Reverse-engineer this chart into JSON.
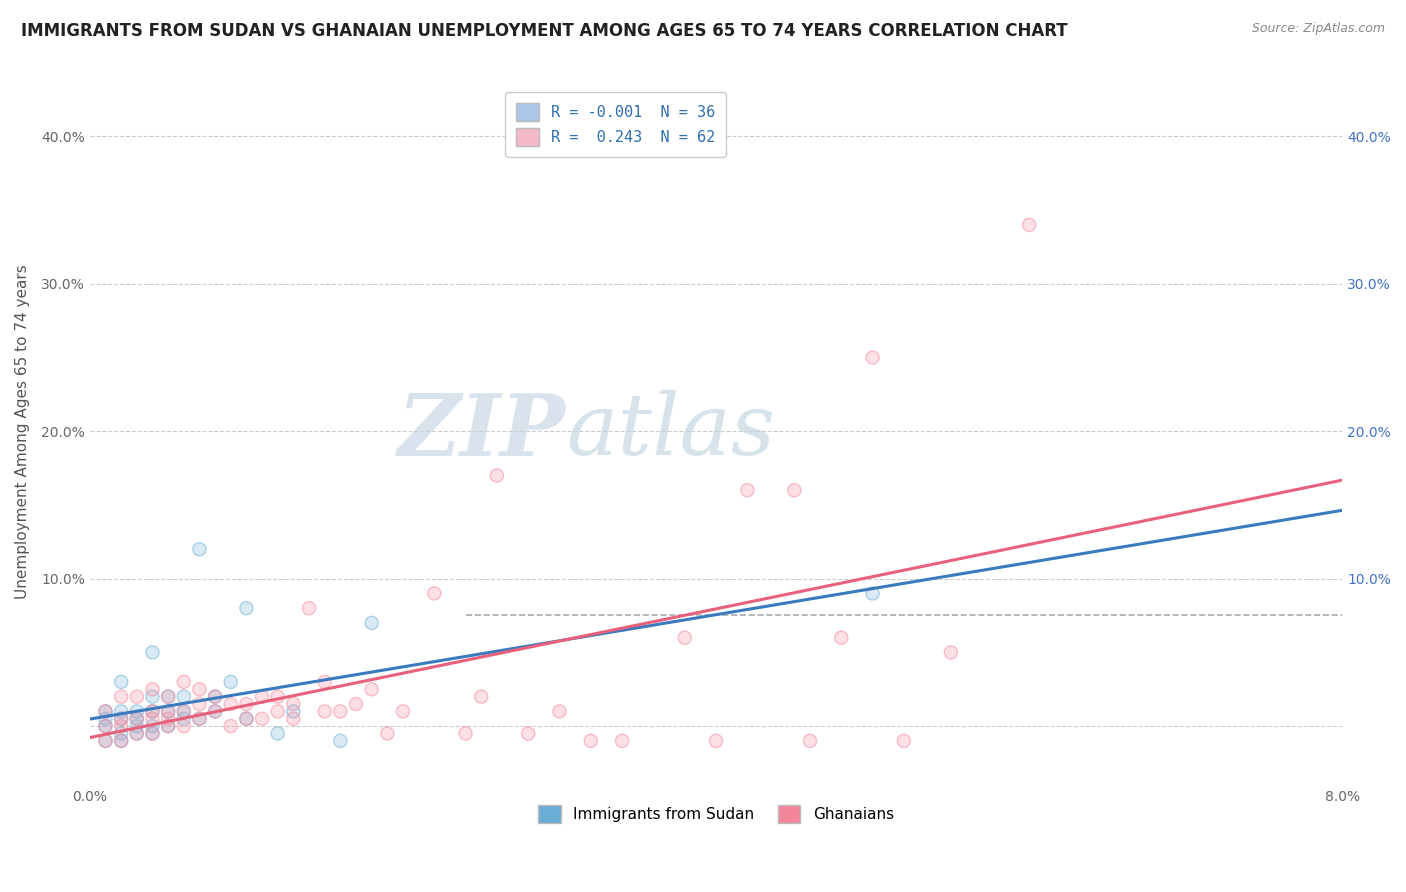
{
  "title": "IMMIGRANTS FROM SUDAN VS GHANAIAN UNEMPLOYMENT AMONG AGES 65 TO 74 YEARS CORRELATION CHART",
  "source_text": "Source: ZipAtlas.com",
  "ylabel": "Unemployment Among Ages 65 to 74 years",
  "xlim": [
    0.0,
    0.08
  ],
  "ylim": [
    -0.04,
    0.44
  ],
  "x_ticks": [
    0.0,
    0.02,
    0.04,
    0.06,
    0.08
  ],
  "x_tick_labels": [
    "0.0%",
    "",
    "",
    "",
    "8.0%"
  ],
  "y_ticks": [
    0.0,
    0.1,
    0.2,
    0.3,
    0.4
  ],
  "y_tick_labels_left": [
    "",
    "10.0%",
    "20.0%",
    "30.0%",
    "40.0%"
  ],
  "y_tick_labels_right": [
    "",
    "10.0%",
    "20.0%",
    "30.0%",
    "40.0%"
  ],
  "legend_entries": [
    {
      "label": "R = -0.001  N = 36",
      "color": "#aec6e8"
    },
    {
      "label": "R =  0.243  N = 62",
      "color": "#f4b8c8"
    }
  ],
  "sudan_color": "#6aaed6",
  "ghana_color": "#f4869b",
  "sudan_line_color": "#3a7abf",
  "ghana_line_color": "#e8607a",
  "watermark_zip": "ZIP",
  "watermark_atlas": "atlas",
  "sudan_scatter_x": [
    0.001,
    0.001,
    0.001,
    0.001,
    0.002,
    0.002,
    0.002,
    0.002,
    0.002,
    0.003,
    0.003,
    0.003,
    0.003,
    0.004,
    0.004,
    0.004,
    0.004,
    0.004,
    0.005,
    0.005,
    0.005,
    0.006,
    0.006,
    0.006,
    0.007,
    0.007,
    0.008,
    0.008,
    0.009,
    0.01,
    0.01,
    0.012,
    0.013,
    0.016,
    0.018,
    0.05
  ],
  "sudan_scatter_y": [
    -0.01,
    0.0,
    0.005,
    0.01,
    -0.01,
    -0.005,
    0.005,
    0.01,
    0.03,
    -0.005,
    0.0,
    0.005,
    0.01,
    -0.005,
    0.0,
    0.01,
    0.02,
    0.05,
    0.0,
    0.01,
    0.02,
    0.005,
    0.01,
    0.02,
    0.005,
    0.12,
    0.01,
    0.02,
    0.03,
    0.005,
    0.08,
    -0.005,
    0.01,
    -0.01,
    0.07,
    0.09
  ],
  "ghana_scatter_x": [
    0.001,
    0.001,
    0.001,
    0.002,
    0.002,
    0.002,
    0.002,
    0.003,
    0.003,
    0.003,
    0.004,
    0.004,
    0.004,
    0.004,
    0.005,
    0.005,
    0.005,
    0.005,
    0.006,
    0.006,
    0.006,
    0.007,
    0.007,
    0.007,
    0.008,
    0.008,
    0.009,
    0.009,
    0.01,
    0.01,
    0.011,
    0.011,
    0.012,
    0.012,
    0.013,
    0.013,
    0.014,
    0.015,
    0.015,
    0.016,
    0.017,
    0.018,
    0.019,
    0.02,
    0.022,
    0.024,
    0.025,
    0.026,
    0.028,
    0.03,
    0.032,
    0.034,
    0.038,
    0.04,
    0.042,
    0.045,
    0.046,
    0.048,
    0.05,
    0.052,
    0.055,
    0.06
  ],
  "ghana_scatter_y": [
    -0.01,
    0.0,
    0.01,
    -0.01,
    0.0,
    0.005,
    0.02,
    -0.005,
    0.005,
    0.02,
    -0.005,
    0.005,
    0.01,
    0.025,
    0.0,
    0.005,
    0.01,
    0.02,
    0.0,
    0.01,
    0.03,
    0.005,
    0.015,
    0.025,
    0.01,
    0.02,
    0.0,
    0.015,
    0.005,
    0.015,
    0.005,
    0.02,
    0.01,
    0.02,
    0.005,
    0.015,
    0.08,
    0.01,
    0.03,
    0.01,
    0.015,
    0.025,
    -0.005,
    0.01,
    0.09,
    -0.005,
    0.02,
    0.17,
    -0.005,
    0.01,
    -0.01,
    -0.01,
    0.06,
    -0.01,
    0.16,
    0.16,
    -0.01,
    0.06,
    0.25,
    -0.01,
    0.05,
    0.34
  ]
}
